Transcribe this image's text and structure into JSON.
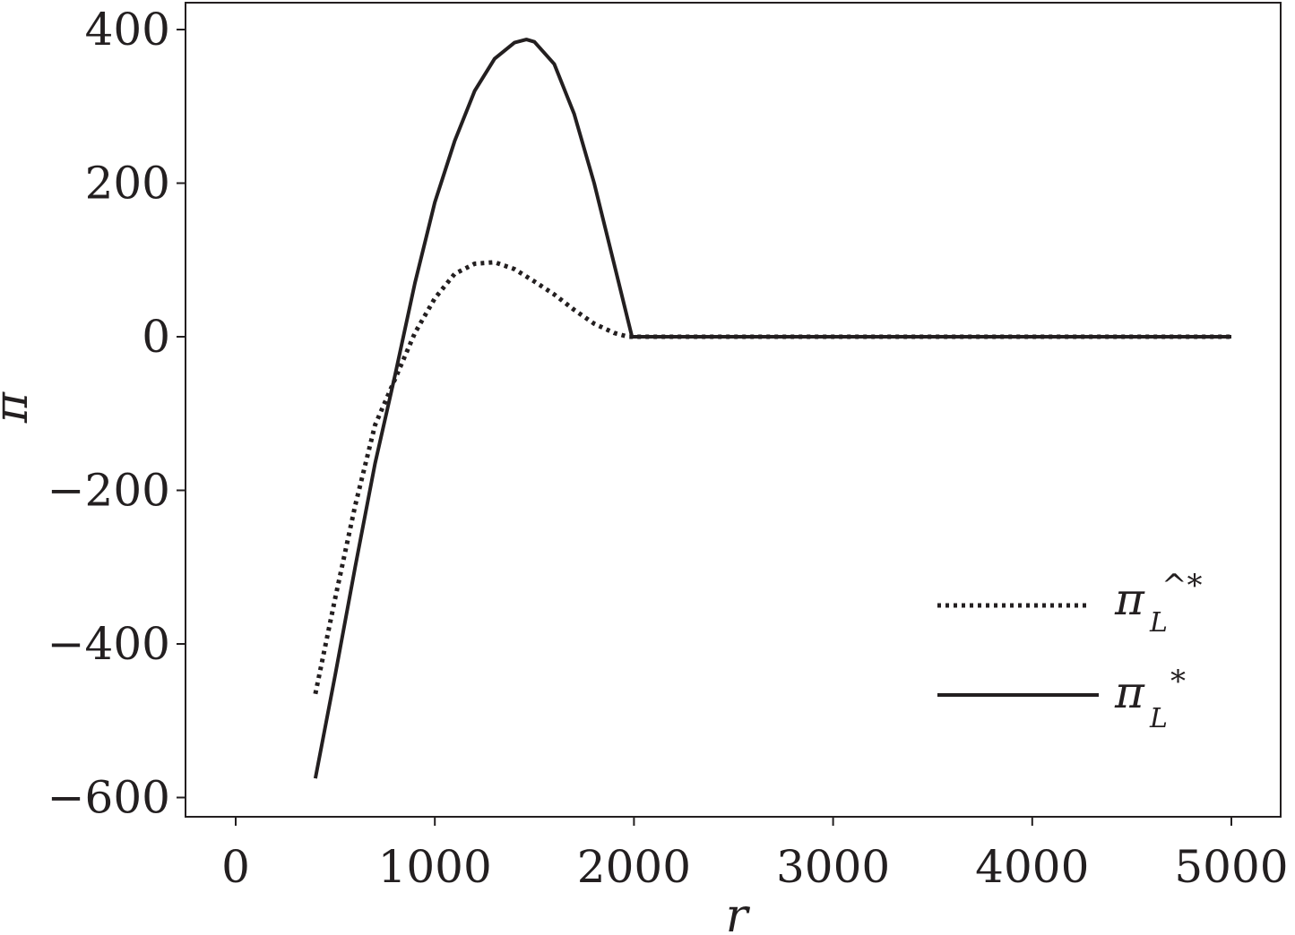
{
  "chart_data": {
    "type": "line",
    "xlabel": "r",
    "ylabel": "π",
    "xlim": [
      -250,
      5250
    ],
    "ylim": [
      -625,
      430
    ],
    "xticks": [
      0,
      1000,
      2000,
      3000,
      4000,
      5000
    ],
    "xtick_labels": [
      "0",
      "1000",
      "2000",
      "3000",
      "4000",
      "5000"
    ],
    "yticks": [
      400,
      200,
      0,
      -200,
      -400,
      -600
    ],
    "ytick_labels": [
      "400",
      "200",
      "0",
      "−200",
      "−400",
      "−600"
    ],
    "grid": false,
    "legend_position": "lower-right",
    "series": [
      {
        "name": "π_L^*",
        "legend_symbol": "π",
        "legend_subscript": "L",
        "legend_superscript": "*",
        "style": "solid",
        "color": "#231f20",
        "x": [
          400,
          500,
          600,
          700,
          800,
          900,
          1000,
          1100,
          1200,
          1300,
          1400,
          1460,
          1500,
          1600,
          1700,
          1800,
          1900,
          1990,
          2000,
          2500,
          3000,
          3500,
          4000,
          4500,
          5000
        ],
        "y": [
          -575,
          -440,
          -300,
          -165,
          -50,
          70,
          175,
          255,
          320,
          362,
          383,
          387,
          384,
          355,
          290,
          200,
          95,
          0,
          0,
          0,
          0,
          0,
          0,
          0,
          0
        ]
      },
      {
        "name": "π_L^̂*",
        "legend_symbol": "π",
        "legend_subscript": "L",
        "legend_superscript": "^*",
        "style": "dotted",
        "color": "#231f20",
        "x": [
          400,
          500,
          600,
          700,
          800,
          900,
          1000,
          1100,
          1200,
          1300,
          1400,
          1500,
          1600,
          1700,
          1800,
          1900,
          1970,
          2000,
          2500,
          3000,
          3500,
          4000,
          4500,
          5000
        ],
        "y": [
          -465,
          -340,
          -220,
          -115,
          -55,
          5,
          50,
          82,
          95,
          97,
          88,
          72,
          55,
          35,
          17,
          5,
          0,
          0,
          0,
          0,
          0,
          0,
          0,
          0
        ]
      }
    ]
  }
}
